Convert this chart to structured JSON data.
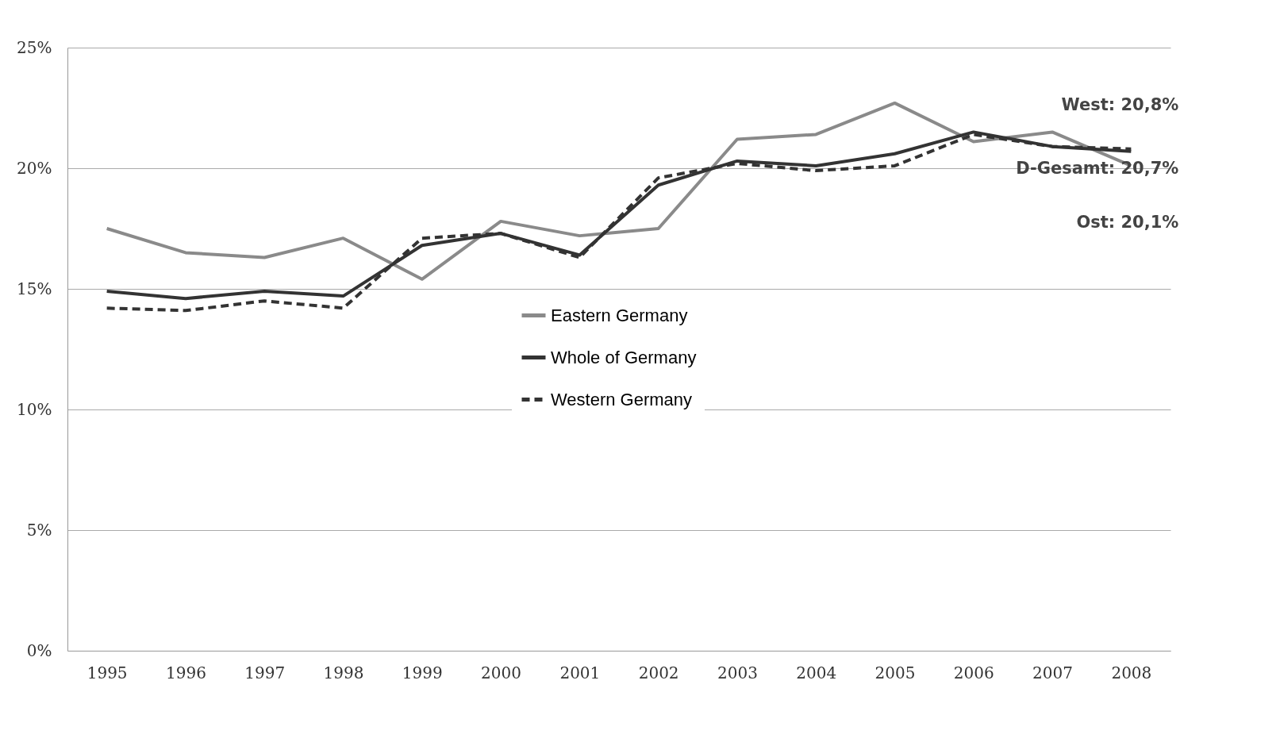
{
  "chart_data": {
    "type": "line",
    "categories": [
      "1995",
      "1996",
      "1997",
      "1998",
      "1999",
      "2000",
      "2001",
      "2002",
      "2003",
      "2004",
      "2005",
      "2006",
      "2007",
      "2008"
    ],
    "series": [
      {
        "name": "Eastern Germany",
        "color": "#8a8a8a",
        "line_style": "solid",
        "values": [
          17.5,
          16.5,
          16.3,
          17.1,
          15.4,
          17.8,
          17.2,
          17.5,
          21.2,
          21.4,
          22.7,
          21.1,
          21.5,
          20.1
        ]
      },
      {
        "name": "Whole of Germany",
        "color": "#333333",
        "line_style": "solid",
        "values": [
          14.9,
          14.6,
          14.9,
          14.7,
          16.8,
          17.3,
          16.4,
          19.3,
          20.3,
          20.1,
          20.6,
          21.5,
          20.9,
          20.7
        ]
      },
      {
        "name": "Western Germany",
        "color": "#333333",
        "line_style": "dashed",
        "values": [
          14.2,
          14.1,
          14.5,
          14.2,
          17.1,
          17.3,
          16.3,
          19.6,
          20.2,
          19.9,
          20.1,
          21.4,
          20.9,
          20.8
        ]
      }
    ],
    "ylim": [
      0,
      25
    ],
    "yticks": [
      {
        "value": 0,
        "label": "0%"
      },
      {
        "value": 5,
        "label": "5%"
      },
      {
        "value": 10,
        "label": "10%"
      },
      {
        "value": 15,
        "label": "15%"
      },
      {
        "value": 20,
        "label": "20%"
      },
      {
        "value": 25,
        "label": "25%"
      }
    ],
    "grid": "y",
    "legend": "center",
    "marker": "none",
    "annotations": [
      {
        "text": "West: 20,8%",
        "x": "2008",
        "y": 20.8
      },
      {
        "text": "D-Gesamt: 20,7%",
        "x": "2008",
        "y": 20.7
      },
      {
        "text": "Ost: 20,1%",
        "x": "2008",
        "y": 20.1
      }
    ]
  }
}
